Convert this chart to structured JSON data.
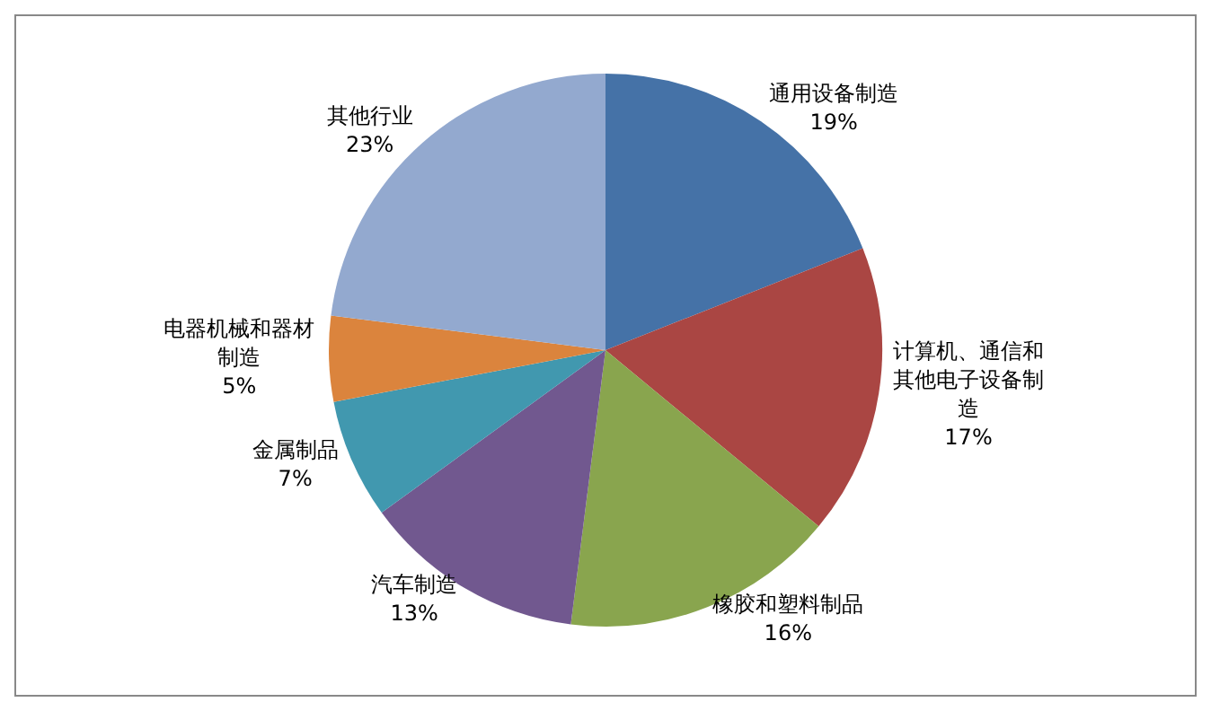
{
  "chart_data": {
    "type": "pie",
    "categories": [
      "通用设备制造",
      "计算机、通信和其他电子设备制造",
      "橡胶和塑料制品",
      "汽车制造",
      "金属制品",
      "电器机械和器材制造",
      "其他行业"
    ],
    "values": [
      19,
      17,
      16,
      13,
      7,
      5,
      23
    ],
    "colors": [
      "#4572a7",
      "#aa4643",
      "#89a54e",
      "#71588f",
      "#4198af",
      "#db843d",
      "#93a9cf"
    ],
    "value_labels": [
      "19%",
      "17%",
      "16%",
      "13%",
      "7%",
      "5%",
      "23%"
    ],
    "legend": false
  }
}
